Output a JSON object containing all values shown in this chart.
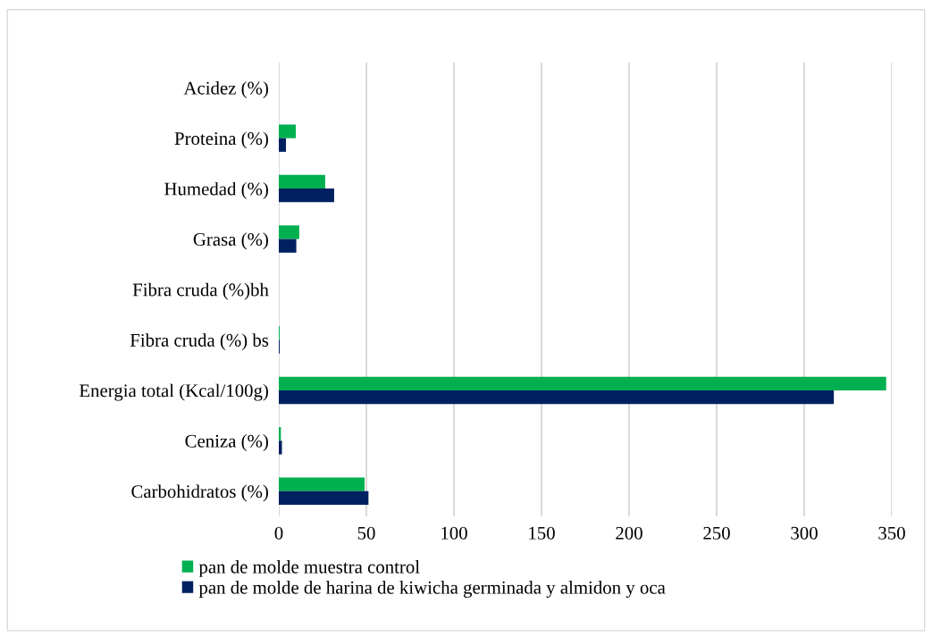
{
  "chart_data": {
    "type": "bar",
    "orientation": "horizontal",
    "categories": [
      "Acidez (%)",
      "Proteina (%)",
      "Humedad (%)",
      "Grasa (%)",
      "Fibra cruda (%)bh",
      "Fibra cruda (%) bs",
      "Energia total (Kcal/100g)",
      "Ceniza (%)",
      "Carbohidratos (%)"
    ],
    "series": [
      {
        "name": "pan de molde muestra control",
        "color": "#00b050",
        "values": [
          null,
          9.7,
          26.5,
          11.7,
          null,
          0.5,
          346.8,
          1.2,
          49
        ]
      },
      {
        "name": "pan de molde de harina de kiwicha germinada y almidon y oca",
        "color": "#002060",
        "values": [
          null,
          4.1,
          31.6,
          10,
          null,
          0.5,
          316.9,
          1.8,
          51.2
        ]
      }
    ],
    "xlim": [
      0,
      350
    ],
    "xticks": [
      0,
      50,
      100,
      150,
      200,
      250,
      300,
      350
    ],
    "grid": "x",
    "legend": "bottom"
  }
}
